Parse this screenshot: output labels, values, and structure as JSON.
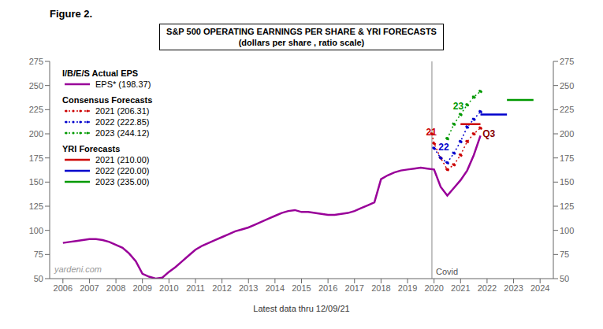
{
  "chart_data": {
    "type": "line",
    "title": "Figure 2.",
    "subtitle": "S&P 500 OPERATING EARNINGS PER SHARE & YRI FORECASTS\n(dollars per share , ratio scale)",
    "xlabel": "Latest data thru 12/09/21",
    "watermark": "yardeni.com",
    "xlim": [
      2005.5,
      2024.5
    ],
    "xticks": [
      2006,
      2007,
      2008,
      2009,
      2010,
      2011,
      2012,
      2013,
      2014,
      2015,
      2016,
      2017,
      2018,
      2019,
      2020,
      2021,
      2022,
      2023,
      2024
    ],
    "ylim": [
      50,
      275
    ],
    "yticks": [
      50,
      75,
      100,
      125,
      150,
      175,
      200,
      225,
      250,
      275
    ],
    "y2lim": [
      50,
      275
    ],
    "y2ticks": [
      50,
      75,
      100,
      125,
      150,
      175,
      200,
      225,
      250,
      275
    ],
    "grid": false,
    "legend": "upper left",
    "series": [
      {
        "name": "EPS* (198.37)",
        "group": "I/B/E/S Actual EPS",
        "color": "#990099",
        "line_style": "solid",
        "marker": "none",
        "x": [
          2006.0,
          2006.25,
          2006.5,
          2006.75,
          2007.0,
          2007.25,
          2007.5,
          2007.75,
          2008.0,
          2008.25,
          2008.5,
          2008.75,
          2009.0,
          2009.25,
          2009.5,
          2009.75,
          2010.0,
          2010.25,
          2010.5,
          2010.75,
          2011.0,
          2011.25,
          2011.5,
          2011.75,
          2012.0,
          2012.25,
          2012.5,
          2012.75,
          2013.0,
          2013.25,
          2013.5,
          2013.75,
          2014.0,
          2014.25,
          2014.5,
          2014.75,
          2015.0,
          2015.25,
          2015.5,
          2015.75,
          2016.0,
          2016.25,
          2016.5,
          2016.75,
          2017.0,
          2017.25,
          2017.5,
          2017.75,
          2018.0,
          2018.25,
          2018.5,
          2018.75,
          2019.0,
          2019.25,
          2019.5,
          2019.75,
          2020.0,
          2020.25,
          2020.5,
          2020.75,
          2021.0,
          2021.25,
          2021.5,
          2021.75
        ],
        "values": [
          87,
          88,
          89,
          90,
          91,
          91,
          90,
          88,
          85,
          82,
          76,
          68,
          55,
          52,
          50,
          51,
          57,
          62,
          68,
          74,
          80,
          84,
          87,
          90,
          93,
          96,
          99,
          101,
          103,
          106,
          109,
          112,
          115,
          118,
          120,
          121,
          119,
          119,
          118,
          117,
          116,
          116,
          117,
          118,
          120,
          123,
          126,
          129,
          153,
          157,
          160,
          162,
          163,
          164,
          165,
          164,
          163,
          145,
          136,
          144,
          152,
          162,
          178,
          198
        ]
      },
      {
        "name": "2021 (206.31)",
        "group": "Consensus Forecasts",
        "color": "#cc0000",
        "line_style": "dotted",
        "marker": "dot",
        "x": [
          2019.92,
          2020.0,
          2020.25,
          2020.5,
          2020.75,
          2021.0,
          2021.25,
          2021.5,
          2021.75
        ],
        "values": [
          200,
          190,
          175,
          163,
          168,
          178,
          192,
          200,
          206
        ]
      },
      {
        "name": "2022 (222.85)",
        "group": "Consensus Forecasts",
        "color": "#0000cc",
        "line_style": "dotted",
        "marker": "dot",
        "x": [
          2020.0,
          2020.25,
          2020.5,
          2020.75,
          2021.0,
          2021.25,
          2021.5,
          2021.75
        ],
        "values": [
          185,
          175,
          170,
          180,
          192,
          207,
          215,
          223
        ]
      },
      {
        "name": "2023 (244.12)",
        "group": "Consensus Forecasts",
        "color": "#009900",
        "line_style": "dotted",
        "marker": "dot",
        "x": [
          2020.5,
          2020.75,
          2021.0,
          2021.25,
          2021.5,
          2021.75
        ],
        "values": [
          195,
          210,
          220,
          230,
          238,
          244
        ]
      },
      {
        "name": "2021 (210.00)",
        "group": "YRI Forecasts",
        "color": "#cc0000",
        "line_style": "solid",
        "marker": "none",
        "x": [
          2021.0,
          2021.75
        ],
        "values": [
          210,
          210
        ]
      },
      {
        "name": "2022 (220.00)",
        "group": "YRI Forecasts",
        "color": "#0000cc",
        "line_style": "solid",
        "marker": "none",
        "x": [
          2021.75,
          2022.75
        ],
        "values": [
          220,
          220
        ]
      },
      {
        "name": "2023 (235.00)",
        "group": "YRI Forecasts",
        "color": "#009900",
        "line_style": "solid",
        "marker": "none",
        "x": [
          2022.75,
          2023.75
        ],
        "values": [
          235,
          235
        ]
      }
    ],
    "reference_lines": [
      {
        "x": 2019.92,
        "label": "Covid",
        "label_y": 57,
        "color": "#888888"
      }
    ],
    "annotations": [
      {
        "text": "21",
        "x": 2019.55,
        "y": 202,
        "color": "#cc0000"
      },
      {
        "text": "22",
        "x": 2020.02,
        "y": 186,
        "color": "#0000cc"
      },
      {
        "text": "23",
        "x": 2020.57,
        "y": 229,
        "color": "#009900"
      },
      {
        "text": "Q3",
        "x": 2021.68,
        "y": 200,
        "color": "#880000"
      }
    ]
  }
}
